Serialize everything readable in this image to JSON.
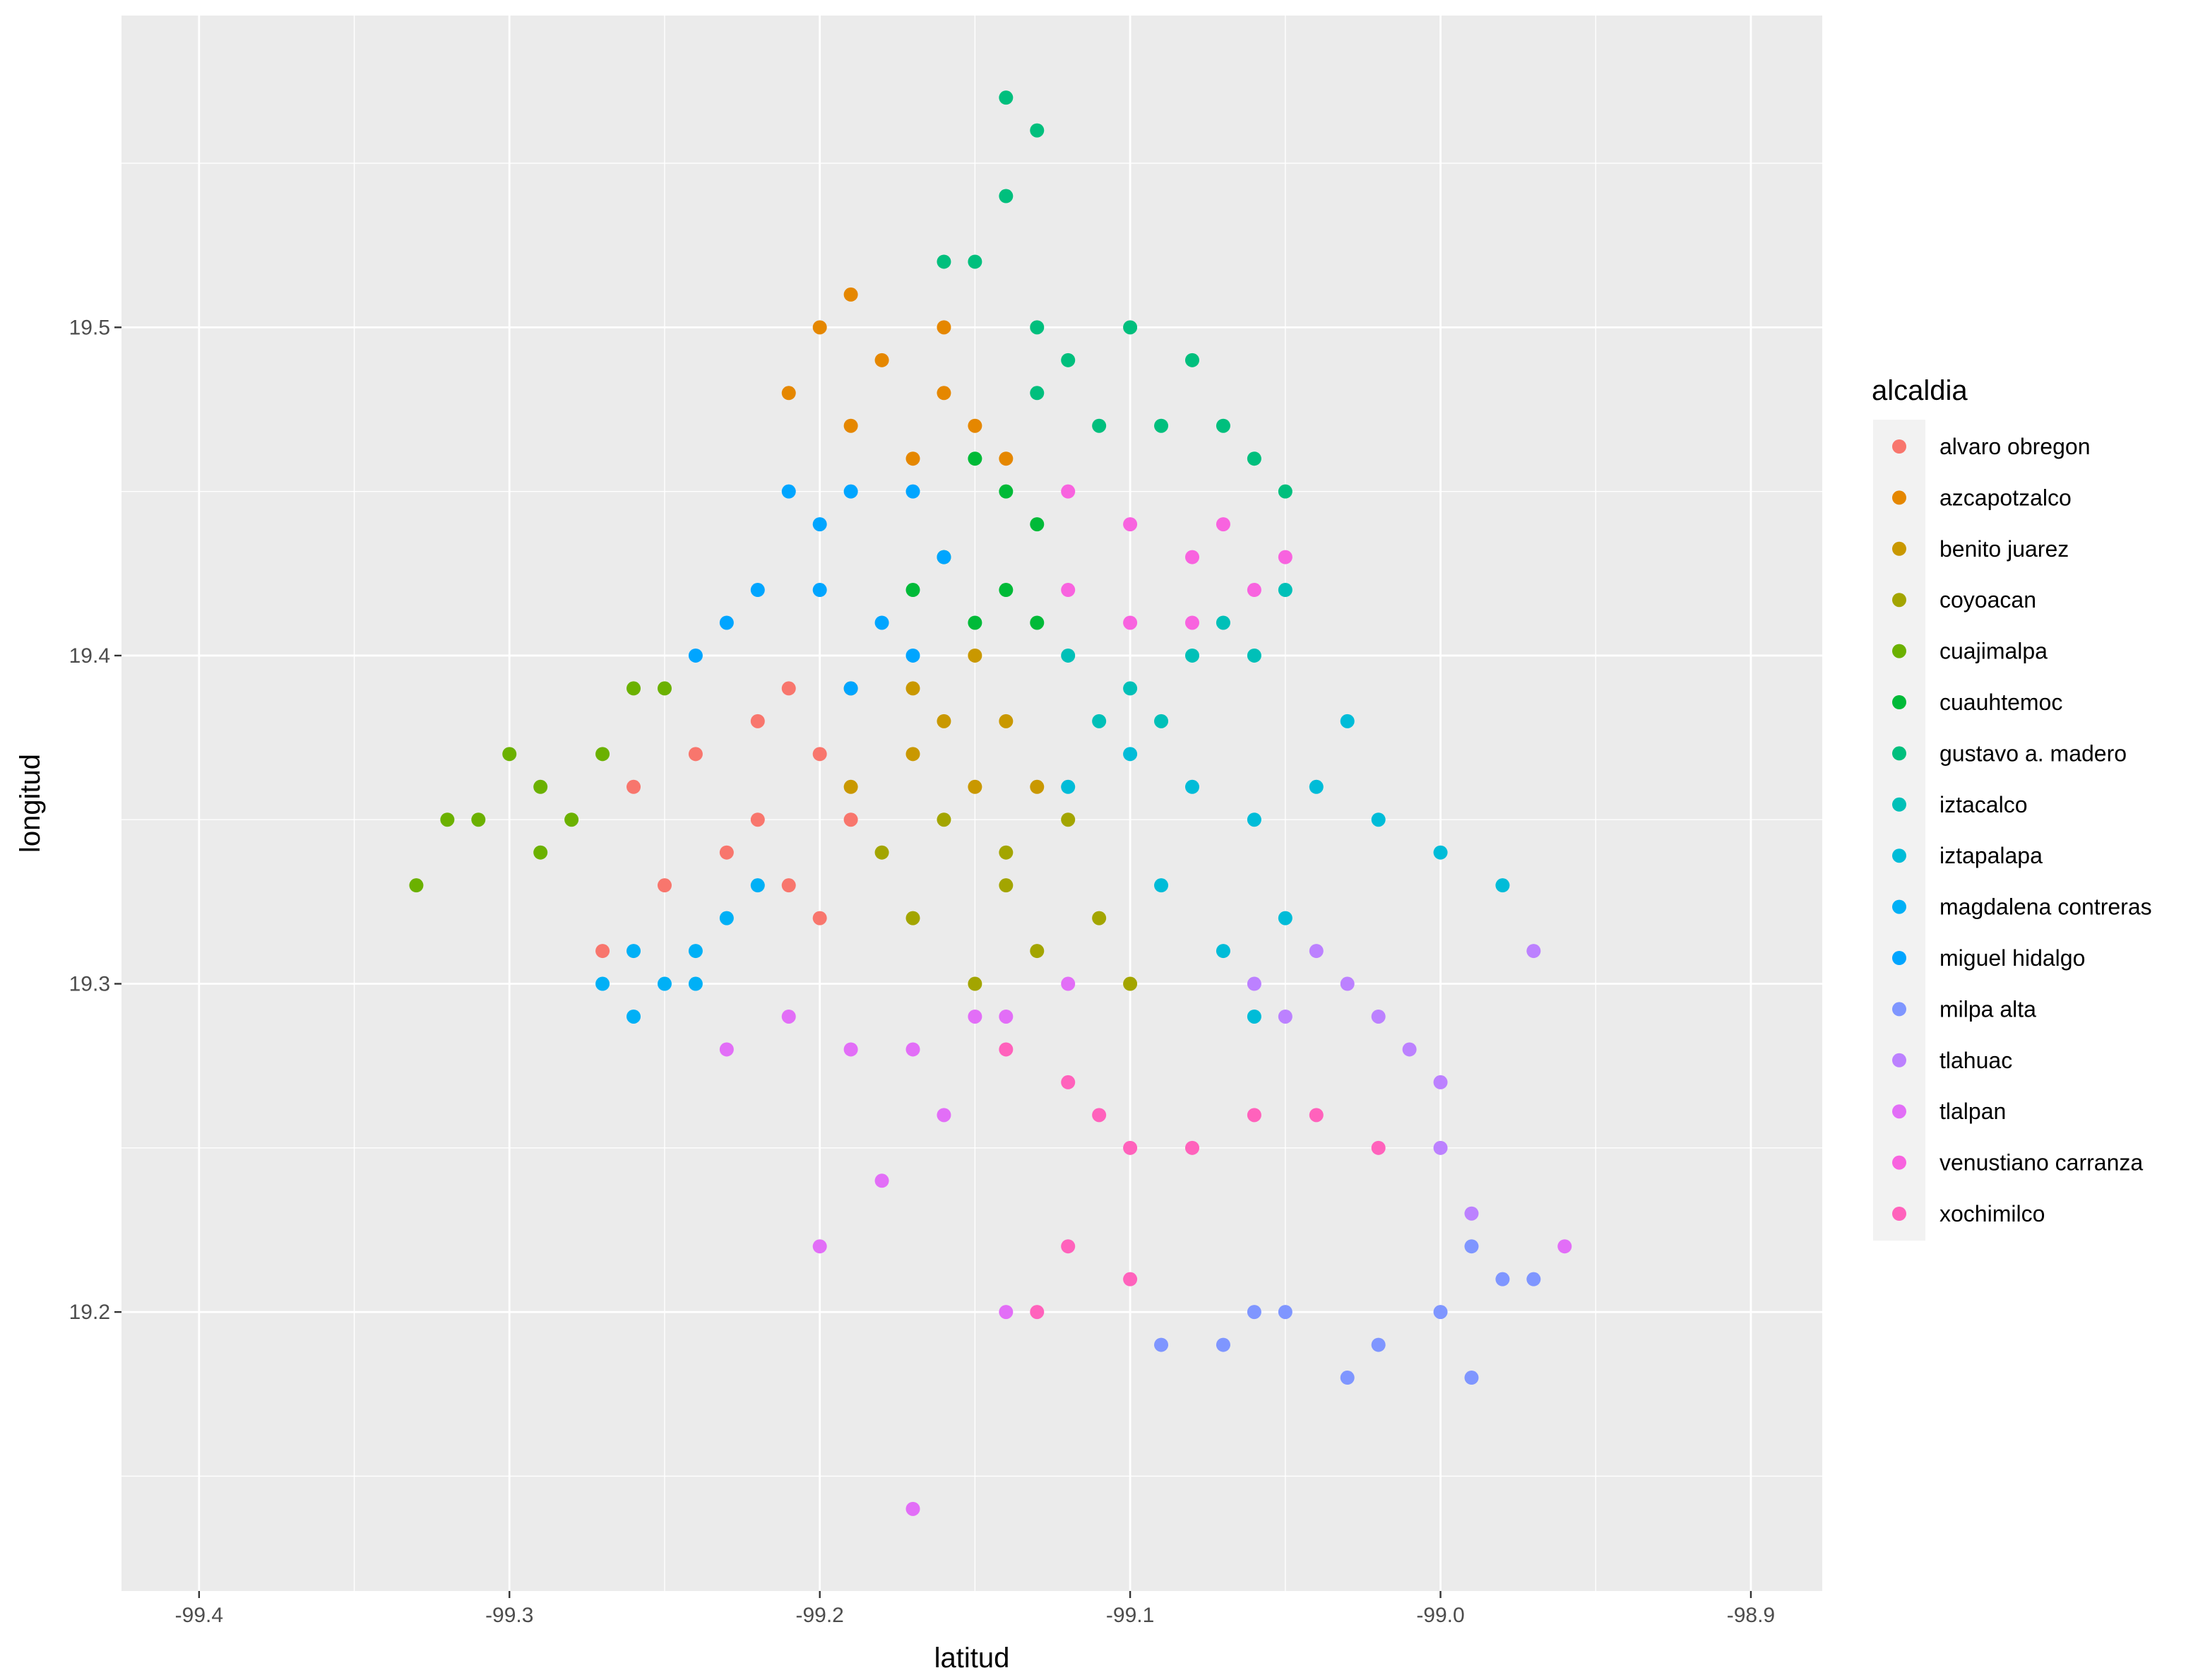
{
  "chart_data": {
    "type": "scatter",
    "title": "",
    "xlabel": "latitud",
    "ylabel": "longitud",
    "xlim": [
      -99.425,
      -98.877
    ],
    "ylim": [
      19.115,
      19.595
    ],
    "x_ticks": [
      -99.4,
      -99.3,
      -99.2,
      -99.1,
      -99.0,
      -98.9
    ],
    "x_tick_labels": [
      "-99.4",
      "-99.3",
      "-99.2",
      "-99.1",
      "-99.0",
      "-98.9"
    ],
    "y_ticks": [
      19.2,
      19.3,
      19.4,
      19.5
    ],
    "y_tick_labels": [
      "19.2",
      "19.3",
      "19.4",
      "19.5"
    ],
    "grid": true,
    "legend": {
      "title": "alcaldia",
      "position": "right"
    },
    "series": [
      {
        "name": "alvaro obregon",
        "color": "#F8766D",
        "points": [
          [
            -99.26,
            19.36
          ],
          [
            -99.24,
            19.37
          ],
          [
            -99.22,
            19.38
          ],
          [
            -99.21,
            19.39
          ],
          [
            -99.2,
            19.37
          ],
          [
            -99.19,
            19.35
          ],
          [
            -99.21,
            19.33
          ],
          [
            -99.23,
            19.34
          ],
          [
            -99.25,
            19.33
          ],
          [
            -99.27,
            19.31
          ],
          [
            -99.2,
            19.32
          ],
          [
            -99.22,
            19.35
          ]
        ]
      },
      {
        "name": "azcapotzalco",
        "color": "#E58700",
        "points": [
          [
            -99.2,
            19.5
          ],
          [
            -99.19,
            19.51
          ],
          [
            -99.18,
            19.49
          ],
          [
            -99.16,
            19.48
          ],
          [
            -99.15,
            19.47
          ],
          [
            -99.17,
            19.46
          ],
          [
            -99.19,
            19.47
          ],
          [
            -99.21,
            19.48
          ],
          [
            -99.16,
            19.5
          ],
          [
            -99.14,
            19.46
          ]
        ]
      },
      {
        "name": "benito juarez",
        "color": "#C99800",
        "points": [
          [
            -99.19,
            19.39
          ],
          [
            -99.17,
            19.39
          ],
          [
            -99.15,
            19.4
          ],
          [
            -99.14,
            19.38
          ],
          [
            -99.13,
            19.36
          ],
          [
            -99.15,
            19.36
          ],
          [
            -99.17,
            19.37
          ],
          [
            -99.19,
            19.36
          ],
          [
            -99.16,
            19.38
          ]
        ]
      },
      {
        "name": "coyoacan",
        "color": "#A3A500",
        "points": [
          [
            -99.18,
            19.34
          ],
          [
            -99.16,
            19.35
          ],
          [
            -99.14,
            19.34
          ],
          [
            -99.12,
            19.35
          ],
          [
            -99.11,
            19.32
          ],
          [
            -99.13,
            19.31
          ],
          [
            -99.15,
            19.3
          ],
          [
            -99.17,
            19.32
          ],
          [
            -99.14,
            19.33
          ],
          [
            -99.1,
            19.3
          ]
        ]
      },
      {
        "name": "cuajimalpa",
        "color": "#6BB100",
        "points": [
          [
            -99.33,
            19.33
          ],
          [
            -99.31,
            19.35
          ],
          [
            -99.3,
            19.37
          ],
          [
            -99.29,
            19.36
          ],
          [
            -99.28,
            19.35
          ],
          [
            -99.27,
            19.37
          ],
          [
            -99.26,
            19.39
          ],
          [
            -99.25,
            19.39
          ],
          [
            -99.29,
            19.34
          ],
          [
            -99.32,
            19.35
          ]
        ]
      },
      {
        "name": "cuauhtemoc",
        "color": "#00BA38",
        "points": [
          [
            -99.15,
            19.46
          ],
          [
            -99.14,
            19.45
          ],
          [
            -99.13,
            19.44
          ],
          [
            -99.14,
            19.42
          ],
          [
            -99.15,
            19.41
          ],
          [
            -99.16,
            19.43
          ],
          [
            -99.17,
            19.42
          ],
          [
            -99.13,
            19.41
          ]
        ]
      },
      {
        "name": "gustavo a. madero",
        "color": "#00BF7D",
        "points": [
          [
            -99.14,
            19.57
          ],
          [
            -99.13,
            19.56
          ],
          [
            -99.14,
            19.54
          ],
          [
            -99.15,
            19.52
          ],
          [
            -99.13,
            19.5
          ],
          [
            -99.12,
            19.49
          ],
          [
            -99.1,
            19.5
          ],
          [
            -99.08,
            19.49
          ],
          [
            -99.07,
            19.47
          ],
          [
            -99.06,
            19.46
          ],
          [
            -99.09,
            19.47
          ],
          [
            -99.11,
            19.47
          ],
          [
            -99.13,
            19.48
          ],
          [
            -99.16,
            19.52
          ],
          [
            -99.05,
            19.45
          ]
        ]
      },
      {
        "name": "iztacalco",
        "color": "#00C0B8",
        "points": [
          [
            -99.12,
            19.4
          ],
          [
            -99.1,
            19.39
          ],
          [
            -99.08,
            19.4
          ],
          [
            -99.07,
            19.41
          ],
          [
            -99.06,
            19.4
          ],
          [
            -99.05,
            19.42
          ],
          [
            -99.09,
            19.38
          ],
          [
            -99.11,
            19.38
          ]
        ]
      },
      {
        "name": "iztapalapa",
        "color": "#00BCD8",
        "points": [
          [
            -99.12,
            19.36
          ],
          [
            -99.1,
            19.37
          ],
          [
            -99.08,
            19.36
          ],
          [
            -99.06,
            19.35
          ],
          [
            -99.04,
            19.36
          ],
          [
            -99.02,
            19.35
          ],
          [
            -99.0,
            19.34
          ],
          [
            -98.98,
            19.33
          ],
          [
            -99.05,
            19.32
          ],
          [
            -99.07,
            19.31
          ],
          [
            -99.09,
            19.33
          ],
          [
            -99.03,
            19.38
          ],
          [
            -99.06,
            19.29
          ]
        ]
      },
      {
        "name": "magdalena contreras",
        "color": "#00B0F6",
        "points": [
          [
            -99.27,
            19.3
          ],
          [
            -99.26,
            19.31
          ],
          [
            -99.25,
            19.3
          ],
          [
            -99.24,
            19.31
          ],
          [
            -99.23,
            19.32
          ],
          [
            -99.22,
            19.33
          ],
          [
            -99.24,
            19.3
          ],
          [
            -99.26,
            19.29
          ]
        ]
      },
      {
        "name": "miguel hidalgo",
        "color": "#00A5FF",
        "points": [
          [
            -99.21,
            19.45
          ],
          [
            -99.2,
            19.44
          ],
          [
            -99.19,
            19.45
          ],
          [
            -99.17,
            19.45
          ],
          [
            -99.16,
            19.43
          ],
          [
            -99.18,
            19.41
          ],
          [
            -99.2,
            19.42
          ],
          [
            -99.22,
            19.42
          ],
          [
            -99.23,
            19.41
          ],
          [
            -99.24,
            19.4
          ],
          [
            -99.19,
            19.39
          ],
          [
            -99.17,
            19.4
          ]
        ]
      },
      {
        "name": "milpa alta",
        "color": "#7F96FF",
        "points": [
          [
            -99.09,
            19.19
          ],
          [
            -99.07,
            19.19
          ],
          [
            -99.06,
            19.2
          ],
          [
            -99.05,
            19.2
          ],
          [
            -99.03,
            19.18
          ],
          [
            -99.02,
            19.19
          ],
          [
            -99.0,
            19.2
          ],
          [
            -98.99,
            19.18
          ],
          [
            -98.99,
            19.22
          ],
          [
            -98.98,
            19.21
          ],
          [
            -98.97,
            19.21
          ]
        ]
      },
      {
        "name": "tlahuac",
        "color": "#BC81FF",
        "points": [
          [
            -99.06,
            19.3
          ],
          [
            -99.05,
            19.29
          ],
          [
            -99.04,
            19.31
          ],
          [
            -99.03,
            19.3
          ],
          [
            -99.02,
            19.29
          ],
          [
            -99.01,
            19.28
          ],
          [
            -99.0,
            19.27
          ],
          [
            -99.0,
            19.25
          ],
          [
            -98.99,
            19.23
          ],
          [
            -98.97,
            19.31
          ]
        ]
      },
      {
        "name": "tlalpan",
        "color": "#E26EF7",
        "points": [
          [
            -99.23,
            19.28
          ],
          [
            -99.21,
            19.29
          ],
          [
            -99.19,
            19.28
          ],
          [
            -99.17,
            19.28
          ],
          [
            -99.15,
            19.29
          ],
          [
            -99.14,
            19.29
          ],
          [
            -99.12,
            19.3
          ],
          [
            -99.16,
            19.26
          ],
          [
            -99.18,
            19.24
          ],
          [
            -99.2,
            19.22
          ],
          [
            -99.14,
            19.2
          ],
          [
            -99.17,
            19.14
          ],
          [
            -98.96,
            19.22
          ]
        ]
      },
      {
        "name": "venustiano carranza",
        "color": "#F863DF",
        "points": [
          [
            -99.12,
            19.45
          ],
          [
            -99.1,
            19.44
          ],
          [
            -99.08,
            19.43
          ],
          [
            -99.1,
            19.41
          ],
          [
            -99.12,
            19.42
          ],
          [
            -99.08,
            19.41
          ],
          [
            -99.06,
            19.42
          ],
          [
            -99.05,
            19.43
          ],
          [
            -99.07,
            19.44
          ]
        ]
      },
      {
        "name": "xochimilco",
        "color": "#FF62BC",
        "points": [
          [
            -99.14,
            19.28
          ],
          [
            -99.12,
            19.27
          ],
          [
            -99.11,
            19.26
          ],
          [
            -99.1,
            19.25
          ],
          [
            -99.08,
            19.25
          ],
          [
            -99.06,
            19.26
          ],
          [
            -99.04,
            19.26
          ],
          [
            -99.02,
            19.25
          ],
          [
            -99.12,
            19.22
          ],
          [
            -99.13,
            19.2
          ],
          [
            -99.1,
            19.21
          ]
        ]
      }
    ]
  }
}
